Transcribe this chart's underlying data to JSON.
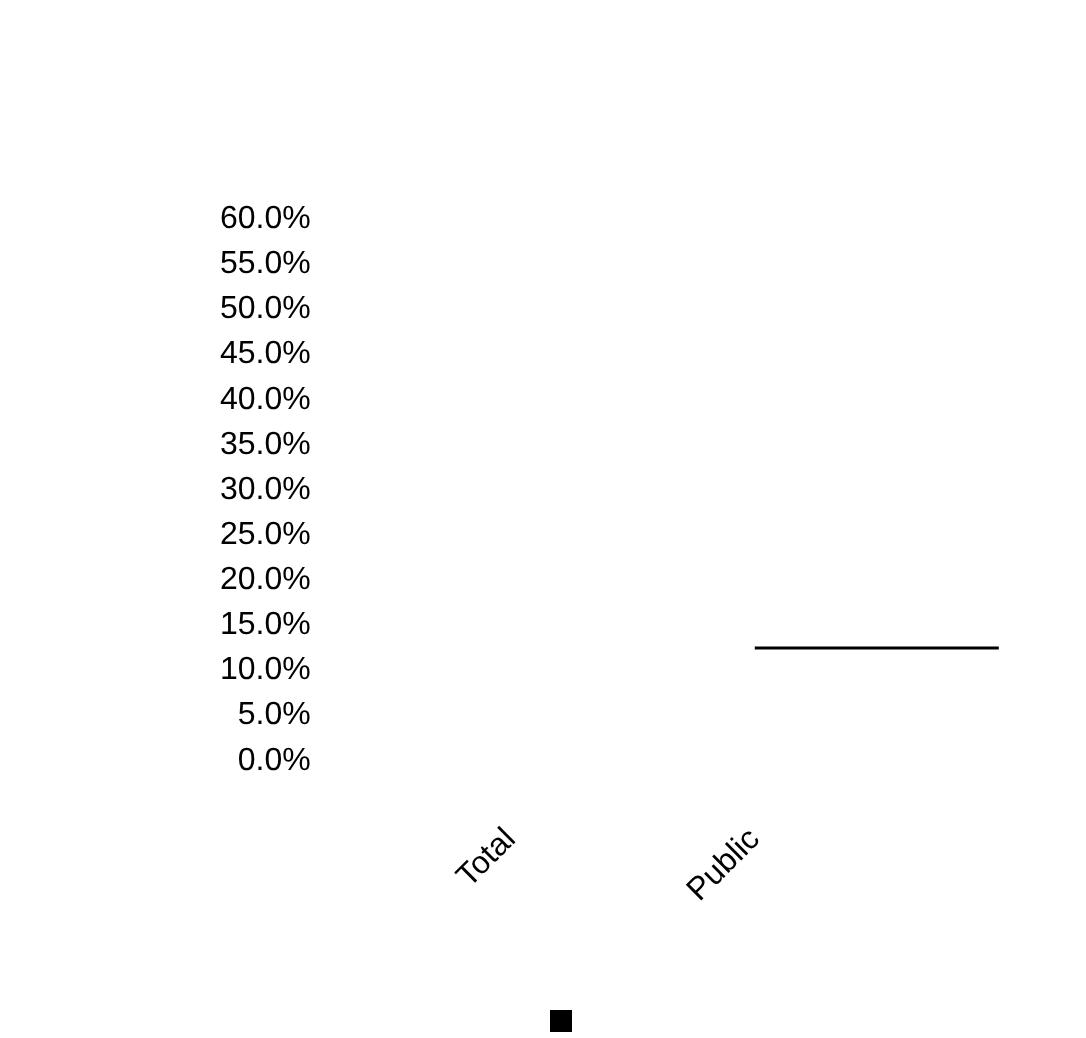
{
  "chart_data": {
    "type": "line",
    "categories": [
      "Total",
      "Public",
      null
    ],
    "series": [
      {
        "color": "#000000",
        "values": [
          null,
          12.5,
          12.5
        ]
      }
    ],
    "ylim": [
      0,
      60
    ],
    "yticks": [
      {
        "value": 0,
        "label": "0.0%"
      },
      {
        "value": 5,
        "label": "5.0%"
      },
      {
        "value": 10,
        "label": "10.0%"
      },
      {
        "value": 15,
        "label": "15.0%"
      },
      {
        "value": 20,
        "label": "20.0%"
      },
      {
        "value": 25,
        "label": "25.0%"
      },
      {
        "value": 30,
        "label": "30.0%"
      },
      {
        "value": 35,
        "label": "35.0%"
      },
      {
        "value": 40,
        "label": "40.0%"
      },
      {
        "value": 45,
        "label": "45.0%"
      },
      {
        "value": 50,
        "label": "50.0%"
      },
      {
        "value": 55,
        "label": "55.0%"
      },
      {
        "value": 60,
        "label": "60.0%"
      }
    ],
    "grid": false,
    "legend": false,
    "marker": "none",
    "line_style": "solid"
  }
}
